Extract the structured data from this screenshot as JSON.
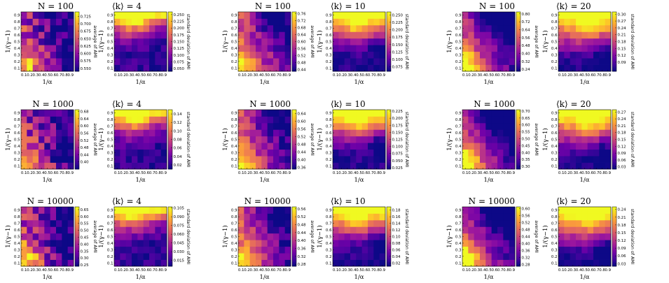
{
  "axis": {
    "xlabel": "1/α",
    "ylabel": "1/(γ−1)"
  },
  "chart_data": [
    {
      "type": "heatmap",
      "title": "N = 100",
      "colorbar_label": "average of AMI",
      "zlim": [
        0.54,
        0.74
      ],
      "colorbar_ticks": [
        "0.725",
        "0.700",
        "0.675",
        "0.650",
        "0.625",
        "0.600",
        "0.575",
        "0.550"
      ],
      "pattern": "mean_small",
      "x": [
        0.1,
        0.2,
        0.3,
        0.4,
        0.5,
        0.6,
        0.7,
        0.8,
        0.9
      ],
      "y": [
        0.1,
        0.2,
        0.3,
        0.4,
        0.5,
        0.6,
        0.7,
        0.8,
        0.9
      ],
      "xticks": [
        "0.1",
        "0.2",
        "0.3",
        "0.4",
        "0.5",
        "0.6",
        "0.7",
        "0.8",
        "0.9"
      ],
      "yticks": [
        "0.1",
        "0.2",
        "0.3",
        "0.4",
        "0.5",
        "0.6",
        "0.7",
        "0.8",
        "0.9"
      ]
    },
    {
      "type": "heatmap",
      "title": "⟨k⟩ = 4",
      "colorbar_label": "standard deviation of AMI",
      "zlim": [
        0.04,
        0.26
      ],
      "colorbar_ticks": [
        "0.250",
        "0.225",
        "0.200",
        "0.175",
        "0.150",
        "0.125",
        "0.100",
        "0.075",
        "0.050"
      ],
      "pattern": "std_small",
      "x": [
        0.1,
        0.2,
        0.3,
        0.4,
        0.5,
        0.6,
        0.7,
        0.8,
        0.9
      ],
      "y": [
        0.1,
        0.2,
        0.3,
        0.4,
        0.5,
        0.6,
        0.7,
        0.8,
        0.9
      ],
      "xticks": [
        "0.1",
        "0.2",
        "0.3",
        "0.4",
        "0.5",
        "0.6",
        "0.7",
        "0.8",
        "0.9"
      ],
      "yticks": [
        "0.1",
        "0.2",
        "0.3",
        "0.4",
        "0.5",
        "0.6",
        "0.7",
        "0.8",
        "0.9"
      ]
    },
    {
      "type": "heatmap",
      "title": "N = 100",
      "colorbar_label": "average of AMI",
      "zlim": [
        0.43,
        0.77
      ],
      "colorbar_ticks": [
        "0.76",
        "0.72",
        "0.68",
        "0.64",
        "0.60",
        "0.56",
        "0.52",
        "0.48",
        "0.44"
      ],
      "pattern": "mean_mid",
      "x": [
        0.1,
        0.2,
        0.3,
        0.4,
        0.5,
        0.6,
        0.7,
        0.8,
        0.9
      ],
      "y": [
        0.1,
        0.2,
        0.3,
        0.4,
        0.5,
        0.6,
        0.7,
        0.8,
        0.9
      ],
      "xticks": [
        "0.1",
        "0.2",
        "0.3",
        "0.4",
        "0.5",
        "0.6",
        "0.7",
        "0.8",
        "0.9"
      ],
      "yticks": [
        "0.1",
        "0.2",
        "0.3",
        "0.4",
        "0.5",
        "0.6",
        "0.7",
        "0.8",
        "0.9"
      ]
    },
    {
      "type": "heatmap",
      "title": "⟨k⟩ = 10",
      "colorbar_label": "standard deviation of AMI",
      "zlim": [
        0.06,
        0.26
      ],
      "colorbar_ticks": [
        "0.250",
        "0.225",
        "0.200",
        "0.175",
        "0.150",
        "0.125",
        "0.100",
        "0.075"
      ],
      "pattern": "std_mid",
      "x": [
        0.1,
        0.2,
        0.3,
        0.4,
        0.5,
        0.6,
        0.7,
        0.8,
        0.9
      ],
      "y": [
        0.1,
        0.2,
        0.3,
        0.4,
        0.5,
        0.6,
        0.7,
        0.8,
        0.9
      ],
      "xticks": [
        "0.1",
        "0.2",
        "0.3",
        "0.4",
        "0.5",
        "0.6",
        "0.7",
        "0.8",
        "0.9"
      ],
      "yticks": [
        "0.1",
        "0.2",
        "0.3",
        "0.4",
        "0.5",
        "0.6",
        "0.7",
        "0.8",
        "0.9"
      ]
    },
    {
      "type": "heatmap",
      "title": "N = 100",
      "colorbar_label": "average of AMI",
      "zlim": [
        0.22,
        0.82
      ],
      "colorbar_ticks": [
        "0.80",
        "0.72",
        "0.64",
        "0.56",
        "0.48",
        "0.40",
        "0.32",
        "0.24"
      ],
      "pattern": "mean_large",
      "x": [
        0.1,
        0.2,
        0.3,
        0.4,
        0.5,
        0.6,
        0.7,
        0.8,
        0.9
      ],
      "y": [
        0.1,
        0.2,
        0.3,
        0.4,
        0.5,
        0.6,
        0.7,
        0.8,
        0.9
      ],
      "xticks": [
        "0.1",
        "0.2",
        "0.3",
        "0.4",
        "0.5",
        "0.6",
        "0.7",
        "0.8",
        "0.9"
      ],
      "yticks": [
        "0.1",
        "0.2",
        "0.3",
        "0.4",
        "0.5",
        "0.6",
        "0.7",
        "0.8",
        "0.9"
      ]
    },
    {
      "type": "heatmap",
      "title": "⟨k⟩ = 20",
      "colorbar_label": "standard deviation of AMI",
      "zlim": [
        0.05,
        0.31
      ],
      "colorbar_ticks": [
        "0.30",
        "0.27",
        "0.24",
        "0.21",
        "0.18",
        "0.15",
        "0.12",
        "0.09"
      ],
      "pattern": "std_large",
      "x": [
        0.1,
        0.2,
        0.3,
        0.4,
        0.5,
        0.6,
        0.7,
        0.8,
        0.9
      ],
      "y": [
        0.1,
        0.2,
        0.3,
        0.4,
        0.5,
        0.6,
        0.7,
        0.8,
        0.9
      ],
      "xticks": [
        "0.1",
        "0.2",
        "0.3",
        "0.4",
        "0.5",
        "0.6",
        "0.7",
        "0.8",
        "0.9"
      ],
      "yticks": [
        "0.1",
        "0.2",
        "0.3",
        "0.4",
        "0.5",
        "0.6",
        "0.7",
        "0.8",
        "0.9"
      ]
    },
    {
      "type": "heatmap",
      "title": "N = 1000",
      "colorbar_label": "average of AMI",
      "zlim": [
        0.36,
        0.69
      ],
      "colorbar_ticks": [
        "0.68",
        "0.64",
        "0.60",
        "0.56",
        "0.52",
        "0.48",
        "0.44",
        "0.40"
      ],
      "pattern": "mean_small",
      "x": [
        0.1,
        0.2,
        0.3,
        0.4,
        0.5,
        0.6,
        0.7,
        0.8,
        0.9
      ],
      "y": [
        0.1,
        0.2,
        0.3,
        0.4,
        0.5,
        0.6,
        0.7,
        0.8,
        0.9
      ],
      "xticks": [
        "0.1",
        "0.2",
        "0.3",
        "0.4",
        "0.5",
        "0.6",
        "0.7",
        "0.8",
        "0.9"
      ],
      "yticks": [
        "0.1",
        "0.2",
        "0.3",
        "0.4",
        "0.5",
        "0.6",
        "0.7",
        "0.8",
        "0.9"
      ]
    },
    {
      "type": "heatmap",
      "title": "⟨k⟩ = 4",
      "colorbar_label": "standard deviation of AMI",
      "zlim": [
        0.01,
        0.15
      ],
      "colorbar_ticks": [
        "0.14",
        "0.12",
        "0.10",
        "0.08",
        "0.06",
        "0.04",
        "0.02"
      ],
      "pattern": "std_small",
      "x": [
        0.1,
        0.2,
        0.3,
        0.4,
        0.5,
        0.6,
        0.7,
        0.8,
        0.9
      ],
      "y": [
        0.1,
        0.2,
        0.3,
        0.4,
        0.5,
        0.6,
        0.7,
        0.8,
        0.9
      ],
      "xticks": [
        "0.1",
        "0.2",
        "0.3",
        "0.4",
        "0.5",
        "0.6",
        "0.7",
        "0.8",
        "0.9"
      ],
      "yticks": [
        "0.1",
        "0.2",
        "0.3",
        "0.4",
        "0.5",
        "0.6",
        "0.7",
        "0.8",
        "0.9"
      ]
    },
    {
      "type": "heatmap",
      "title": "N = 1000",
      "colorbar_label": "average of AMI",
      "zlim": [
        0.35,
        0.66
      ],
      "colorbar_ticks": [
        "0.64",
        "0.60",
        "0.56",
        "0.52",
        "0.48",
        "0.44",
        "0.40",
        "0.36"
      ],
      "pattern": "mean_mid",
      "x": [
        0.1,
        0.2,
        0.3,
        0.4,
        0.5,
        0.6,
        0.7,
        0.8,
        0.9
      ],
      "y": [
        0.1,
        0.2,
        0.3,
        0.4,
        0.5,
        0.6,
        0.7,
        0.8,
        0.9
      ],
      "xticks": [
        "0.1",
        "0.2",
        "0.3",
        "0.4",
        "0.5",
        "0.6",
        "0.7",
        "0.8",
        "0.9"
      ],
      "yticks": [
        "0.1",
        "0.2",
        "0.3",
        "0.4",
        "0.5",
        "0.6",
        "0.7",
        "0.8",
        "0.9"
      ]
    },
    {
      "type": "heatmap",
      "title": "⟨k⟩ = 10",
      "colorbar_label": "standard deviation of AMI",
      "zlim": [
        0.02,
        0.23
      ],
      "colorbar_ticks": [
        "0.225",
        "0.200",
        "0.175",
        "0.150",
        "0.125",
        "0.100",
        "0.075",
        "0.050",
        "0.025"
      ],
      "pattern": "std_mid",
      "x": [
        0.1,
        0.2,
        0.3,
        0.4,
        0.5,
        0.6,
        0.7,
        0.8,
        0.9
      ],
      "y": [
        0.1,
        0.2,
        0.3,
        0.4,
        0.5,
        0.6,
        0.7,
        0.8,
        0.9
      ],
      "xticks": [
        "0.1",
        "0.2",
        "0.3",
        "0.4",
        "0.5",
        "0.6",
        "0.7",
        "0.8",
        "0.9"
      ],
      "yticks": [
        "0.1",
        "0.2",
        "0.3",
        "0.4",
        "0.5",
        "0.6",
        "0.7",
        "0.8",
        "0.9"
      ]
    },
    {
      "type": "heatmap",
      "title": "N = 1000",
      "colorbar_label": "average of AMI",
      "zlim": [
        0.28,
        0.71
      ],
      "colorbar_ticks": [
        "0.70",
        "0.65",
        "0.60",
        "0.55",
        "0.50",
        "0.45",
        "0.40",
        "0.35",
        "0.30"
      ],
      "pattern": "mean_large",
      "x": [
        0.1,
        0.2,
        0.3,
        0.4,
        0.5,
        0.6,
        0.7,
        0.8,
        0.9
      ],
      "y": [
        0.1,
        0.2,
        0.3,
        0.4,
        0.5,
        0.6,
        0.7,
        0.8,
        0.9
      ],
      "xticks": [
        "0.1",
        "0.2",
        "0.3",
        "0.4",
        "0.5",
        "0.6",
        "0.7",
        "0.8",
        "0.9"
      ],
      "yticks": [
        "0.1",
        "0.2",
        "0.3",
        "0.4",
        "0.5",
        "0.6",
        "0.7",
        "0.8",
        "0.9"
      ]
    },
    {
      "type": "heatmap",
      "title": "⟨k⟩ = 20",
      "colorbar_label": "standard deviation of AMI",
      "zlim": [
        0.02,
        0.28
      ],
      "colorbar_ticks": [
        "0.27",
        "0.24",
        "0.21",
        "0.18",
        "0.15",
        "0.12",
        "0.09",
        "0.06",
        "0.03"
      ],
      "pattern": "std_large",
      "x": [
        0.1,
        0.2,
        0.3,
        0.4,
        0.5,
        0.6,
        0.7,
        0.8,
        0.9
      ],
      "y": [
        0.1,
        0.2,
        0.3,
        0.4,
        0.5,
        0.6,
        0.7,
        0.8,
        0.9
      ],
      "xticks": [
        "0.1",
        "0.2",
        "0.3",
        "0.4",
        "0.5",
        "0.6",
        "0.7",
        "0.8",
        "0.9"
      ],
      "yticks": [
        "0.1",
        "0.2",
        "0.3",
        "0.4",
        "0.5",
        "0.6",
        "0.7",
        "0.8",
        "0.9"
      ]
    },
    {
      "type": "heatmap",
      "title": "N = 10000",
      "colorbar_label": "average of AMI",
      "zlim": [
        0.24,
        0.67
      ],
      "colorbar_ticks": [
        "0.65",
        "0.60",
        "0.55",
        "0.50",
        "0.45",
        "0.40",
        "0.35",
        "0.30",
        "0.25"
      ],
      "pattern": "mean_small",
      "x": [
        0.1,
        0.2,
        0.3,
        0.4,
        0.5,
        0.6,
        0.7,
        0.8,
        0.9
      ],
      "y": [
        0.1,
        0.2,
        0.3,
        0.4,
        0.5,
        0.6,
        0.7,
        0.8,
        0.9
      ],
      "xticks": [
        "0.1",
        "0.2",
        "0.3",
        "0.4",
        "0.5",
        "0.6",
        "0.7",
        "0.8",
        "0.9"
      ],
      "yticks": [
        "0.1",
        "0.2",
        "0.3",
        "0.4",
        "0.5",
        "0.6",
        "0.7",
        "0.8",
        "0.9"
      ]
    },
    {
      "type": "heatmap",
      "title": "⟨k⟩ = 4",
      "colorbar_label": "standard deviation of AMI",
      "zlim": [
        0.005,
        0.107
      ],
      "colorbar_ticks": [
        "0.105",
        "0.090",
        "0.075",
        "0.060",
        "0.045",
        "0.030",
        "0.015"
      ],
      "pattern": "std_small",
      "x": [
        0.1,
        0.2,
        0.3,
        0.4,
        0.5,
        0.6,
        0.7,
        0.8,
        0.9
      ],
      "y": [
        0.1,
        0.2,
        0.3,
        0.4,
        0.5,
        0.6,
        0.7,
        0.8,
        0.9
      ],
      "xticks": [
        "0.1",
        "0.2",
        "0.3",
        "0.4",
        "0.5",
        "0.6",
        "0.7",
        "0.8",
        "0.9"
      ],
      "yticks": [
        "0.1",
        "0.2",
        "0.3",
        "0.4",
        "0.5",
        "0.6",
        "0.7",
        "0.8",
        "0.9"
      ]
    },
    {
      "type": "heatmap",
      "title": "N = 10000",
      "colorbar_label": "average of AMI",
      "zlim": [
        0.27,
        0.57
      ],
      "colorbar_ticks": [
        "0.56",
        "0.52",
        "0.48",
        "0.44",
        "0.40",
        "0.36",
        "0.32",
        "0.28"
      ],
      "pattern": "mean_mid",
      "x": [
        0.1,
        0.2,
        0.3,
        0.4,
        0.5,
        0.6,
        0.7,
        0.8,
        0.9
      ],
      "y": [
        0.1,
        0.2,
        0.3,
        0.4,
        0.5,
        0.6,
        0.7,
        0.8,
        0.9
      ],
      "xticks": [
        "0.1",
        "0.2",
        "0.3",
        "0.4",
        "0.5",
        "0.6",
        "0.7",
        "0.8",
        "0.9"
      ],
      "yticks": [
        "0.1",
        "0.2",
        "0.3",
        "0.4",
        "0.5",
        "0.6",
        "0.7",
        "0.8",
        "0.9"
      ]
    },
    {
      "type": "heatmap",
      "title": "⟨k⟩ = 10",
      "colorbar_label": "standard deviation of AMI",
      "zlim": [
        0.01,
        0.19
      ],
      "colorbar_ticks": [
        "0.18",
        "0.16",
        "0.14",
        "0.12",
        "0.10",
        "0.08",
        "0.06",
        "0.04",
        "0.02"
      ],
      "pattern": "std_mid",
      "x": [
        0.1,
        0.2,
        0.3,
        0.4,
        0.5,
        0.6,
        0.7,
        0.8,
        0.9
      ],
      "y": [
        0.1,
        0.2,
        0.3,
        0.4,
        0.5,
        0.6,
        0.7,
        0.8,
        0.9
      ],
      "xticks": [
        "0.1",
        "0.2",
        "0.3",
        "0.4",
        "0.5",
        "0.6",
        "0.7",
        "0.8",
        "0.9"
      ],
      "yticks": [
        "0.1",
        "0.2",
        "0.3",
        "0.4",
        "0.5",
        "0.6",
        "0.7",
        "0.8",
        "0.9"
      ]
    },
    {
      "type": "heatmap",
      "title": "N = 10000",
      "colorbar_label": "average of AMI",
      "zlim": [
        0.27,
        0.61
      ],
      "colorbar_ticks": [
        "0.60",
        "0.56",
        "0.52",
        "0.48",
        "0.44",
        "0.40",
        "0.36",
        "0.32",
        "0.28"
      ],
      "pattern": "mean_large",
      "x": [
        0.1,
        0.2,
        0.3,
        0.4,
        0.5,
        0.6,
        0.7,
        0.8,
        0.9
      ],
      "y": [
        0.1,
        0.2,
        0.3,
        0.4,
        0.5,
        0.6,
        0.7,
        0.8,
        0.9
      ],
      "xticks": [
        "0.1",
        "0.2",
        "0.3",
        "0.4",
        "0.5",
        "0.6",
        "0.7",
        "0.8",
        "0.9"
      ],
      "yticks": [
        "0.1",
        "0.2",
        "0.3",
        "0.4",
        "0.5",
        "0.6",
        "0.7",
        "0.8",
        "0.9"
      ]
    },
    {
      "type": "heatmap",
      "title": "⟨k⟩ = 20",
      "colorbar_label": "standard deviation of AMI",
      "zlim": [
        0.02,
        0.25
      ],
      "colorbar_ticks": [
        "0.24",
        "0.21",
        "0.18",
        "0.15",
        "0.12",
        "0.09",
        "0.06",
        "0.03"
      ],
      "pattern": "std_large",
      "x": [
        0.1,
        0.2,
        0.3,
        0.4,
        0.5,
        0.6,
        0.7,
        0.8,
        0.9
      ],
      "y": [
        0.1,
        0.2,
        0.3,
        0.4,
        0.5,
        0.6,
        0.7,
        0.8,
        0.9
      ],
      "xticks": [
        "0.1",
        "0.2",
        "0.3",
        "0.4",
        "0.5",
        "0.6",
        "0.7",
        "0.8",
        "0.9"
      ],
      "yticks": [
        "0.1",
        "0.2",
        "0.3",
        "0.4",
        "0.5",
        "0.6",
        "0.7",
        "0.8",
        "0.9"
      ]
    }
  ],
  "colormap": {
    "name": "plasma",
    "stops": [
      "#0d0887",
      "#46039f",
      "#7201a8",
      "#9c179e",
      "#bd3786",
      "#d8576b",
      "#ed7953",
      "#fb9f3a",
      "#fdca26",
      "#f0f921"
    ]
  }
}
